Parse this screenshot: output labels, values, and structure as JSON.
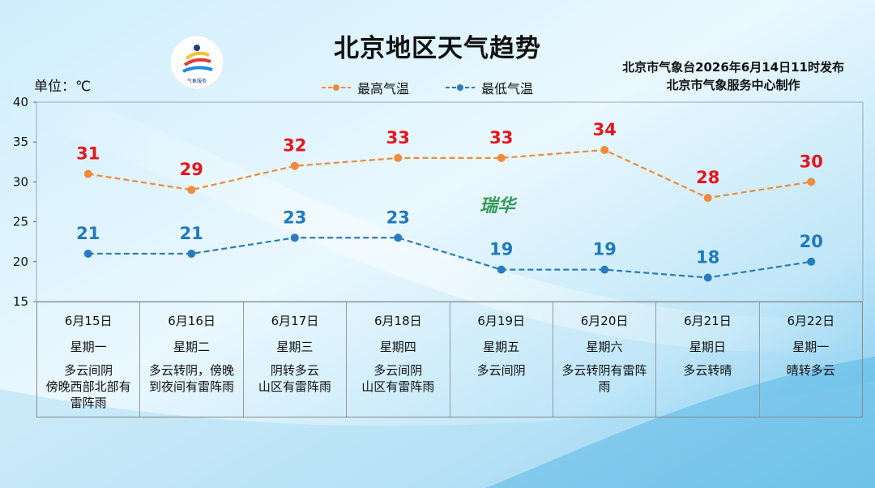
{
  "header": {
    "title": "北京地区天气趋势",
    "issuer_line1": "北京市气象台2026年6月14日11时发布",
    "issuer_line2": "北京市气象服务中心制作",
    "unit": "单位：℃"
  },
  "logo": {
    "text": "METEOROLOGICAL SERVICE",
    "caption": "气象服务",
    "name": "meteorological-service-logo"
  },
  "watermark": "瑞华",
  "colors": {
    "high": "#f08a3c",
    "low": "#2a7bbf",
    "high_label": "#e8141d",
    "low_label": "#1f79be"
  },
  "chart_data": {
    "type": "line",
    "categories": [
      "6月15日",
      "6月16日",
      "6月17日",
      "6月18日",
      "6月19日",
      "6月20日",
      "6月21日",
      "6月22日"
    ],
    "ylim": [
      15,
      40
    ],
    "yticks": [
      "15",
      "20",
      "25",
      "30",
      "35",
      "40"
    ],
    "legend_position": "top-center",
    "series": [
      {
        "name": "最高气温",
        "values": [
          31,
          29,
          32,
          33,
          33,
          34,
          28,
          30
        ]
      },
      {
        "name": "最低气温",
        "values": [
          21,
          21,
          23,
          23,
          19,
          19,
          18,
          20
        ]
      }
    ]
  },
  "days": [
    {
      "date": "6月15日",
      "weekday": "星期一",
      "weather": "多云间阴\n傍晚西部北部有\n雷阵雨"
    },
    {
      "date": "6月16日",
      "weekday": "星期二",
      "weather": "多云转阴，傍晚\n到夜间有雷阵雨"
    },
    {
      "date": "6月17日",
      "weekday": "星期三",
      "weather": "阴转多云\n山区有雷阵雨"
    },
    {
      "date": "6月18日",
      "weekday": "星期四",
      "weather": "多云间阴\n山区有雷阵雨"
    },
    {
      "date": "6月19日",
      "weekday": "星期五",
      "weather": "多云间阴"
    },
    {
      "date": "6月20日",
      "weekday": "星期六",
      "weather": "多云转阴有雷阵\n雨"
    },
    {
      "date": "6月21日",
      "weekday": "星期日",
      "weather": "多云转晴"
    },
    {
      "date": "6月22日",
      "weekday": "星期一",
      "weather": "晴转多云"
    }
  ]
}
